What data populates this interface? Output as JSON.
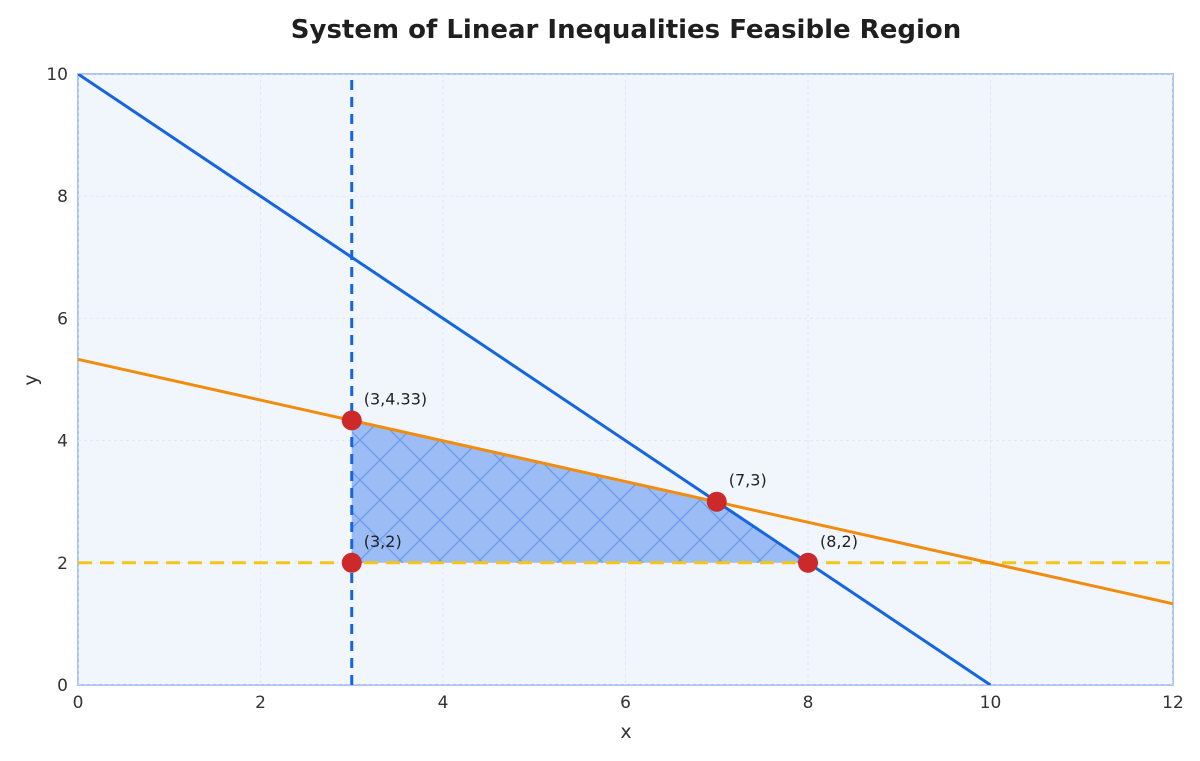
{
  "chart_data": {
    "type": "line",
    "title": "System of Linear Inequalities Feasible Region",
    "xlabel": "x",
    "ylabel": "y",
    "xlim": [
      0,
      12
    ],
    "ylim": [
      0,
      10
    ],
    "xticks": [
      "0",
      "2",
      "4",
      "6",
      "8",
      "10",
      "12"
    ],
    "yticks": [
      "0",
      "2",
      "4",
      "6",
      "8",
      "10"
    ],
    "grid": true,
    "colors": {
      "plot_bg": "#f1f6fc",
      "frame": "#a9c4ef",
      "region_fill": "#96b8f3",
      "hatch": "#6b9ae9",
      "blue_line": "#1565e0",
      "orange_line": "#f28c0f",
      "yellow_line": "#f5c518",
      "vertex": "#cc2a2a"
    },
    "series": [
      {
        "line": "solid-blue",
        "x": [
          0,
          10
        ],
        "y": [
          10,
          0
        ]
      },
      {
        "line": "solid-orange",
        "x": [
          0,
          12
        ],
        "y": [
          5.33,
          1.33
        ]
      },
      {
        "line": "dashed-blue",
        "x": [
          3,
          3
        ],
        "y": [
          0,
          10
        ]
      },
      {
        "line": "dashed-yellow",
        "x": [
          0,
          12
        ],
        "y": [
          2,
          2
        ]
      }
    ],
    "feasible_region": [
      [
        3,
        2
      ],
      [
        3,
        4.33
      ],
      [
        7,
        3
      ],
      [
        8,
        2
      ]
    ],
    "vertices": [
      {
        "label": "(3,4.33)",
        "x": 3,
        "y": 4.33
      },
      {
        "label": "(3,2)",
        "x": 3,
        "y": 2
      },
      {
        "label": "(7,3)",
        "x": 7,
        "y": 3
      },
      {
        "label": "(8,2)",
        "x": 8,
        "y": 2
      }
    ]
  }
}
